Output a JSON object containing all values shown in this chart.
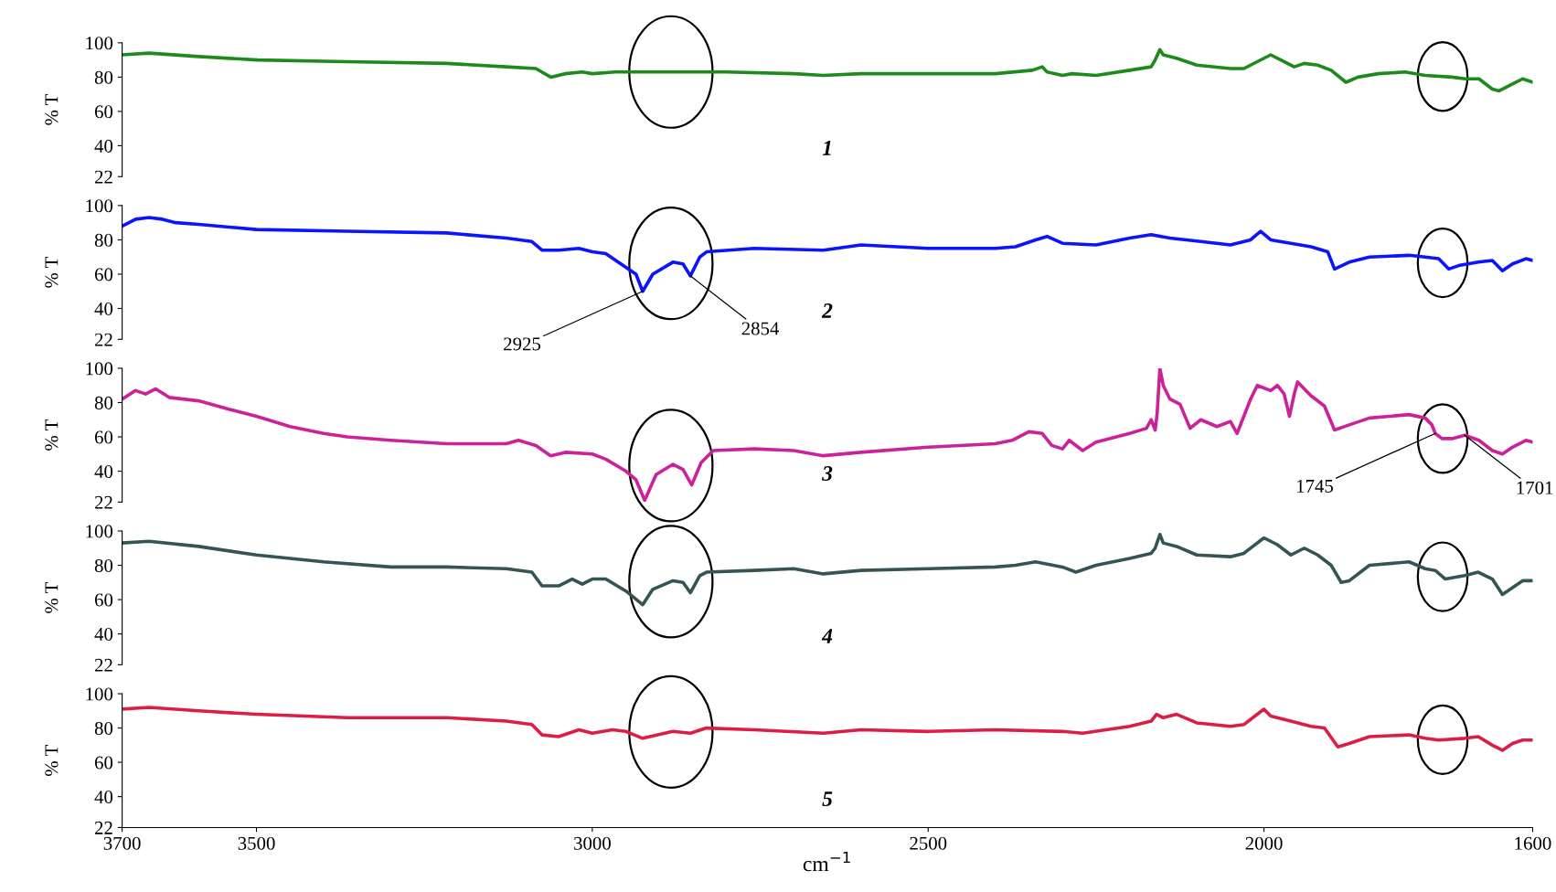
{
  "chart_data": [
    {
      "type": "line",
      "ylabel": "% T",
      "xlim": [
        3700,
        1600
      ],
      "ylim": [
        22,
        100
      ],
      "yticks": [
        22,
        40,
        60,
        80,
        100
      ],
      "tick_labels": "y",
      "annotations": [
        "1"
      ],
      "x": [
        3700,
        3660,
        3586,
        3498,
        3365,
        3217,
        3128,
        3084,
        3062,
        3040,
        3015,
        3000,
        2966,
        2900,
        2800,
        2700,
        2656,
        2600,
        2500,
        2400,
        2345,
        2330,
        2323,
        2300,
        2286,
        2250,
        2200,
        2168,
        2162,
        2155,
        2150,
        2130,
        2100,
        2050,
        2030,
        2020,
        2000,
        1990,
        1975,
        1955,
        1940,
        1920,
        1900,
        1878,
        1860,
        1830,
        1790,
        1760,
        1720,
        1700,
        1680,
        1660,
        1650,
        1630,
        1615,
        1600
      ],
      "series": [
        {
          "color": "#1e8a1e",
          "values": [
            93,
            94,
            92,
            90,
            89,
            88,
            86,
            85,
            80,
            82,
            83,
            82,
            83,
            83,
            83,
            82,
            81,
            82,
            82,
            82,
            84,
            86,
            83,
            81,
            82,
            81,
            84,
            86,
            90,
            96,
            93,
            91,
            87,
            85,
            85,
            87,
            91,
            93,
            90,
            86,
            88,
            87,
            84,
            77,
            80,
            82,
            83,
            81,
            80,
            79,
            79,
            73,
            72,
            76,
            79,
            77
          ]
        }
      ]
    },
    {
      "type": "line",
      "ylabel": "% T",
      "xlim": [
        3700,
        1600
      ],
      "ylim": [
        22,
        100
      ],
      "yticks": [
        22,
        40,
        60,
        80,
        100
      ],
      "tick_labels": "y",
      "annotations": [
        "2",
        {
          "text": "2925",
          "x": 2925,
          "y": 50
        },
        {
          "text": "2854",
          "x": 2854,
          "y": 59
        }
      ],
      "x": [
        3700,
        3680,
        3660,
        3640,
        3620,
        3586,
        3500,
        3365,
        3217,
        3128,
        3090,
        3075,
        3050,
        3020,
        3000,
        2980,
        2950,
        2935,
        2925,
        2910,
        2880,
        2865,
        2854,
        2840,
        2830,
        2759,
        2656,
        2600,
        2500,
        2400,
        2370,
        2340,
        2323,
        2300,
        2250,
        2200,
        2168,
        2140,
        2094,
        2050,
        2020,
        2005,
        1990,
        1960,
        1930,
        1905,
        1895,
        1873,
        1843,
        1784,
        1760,
        1740,
        1725,
        1710,
        1681,
        1660,
        1645,
        1630,
        1610,
        1600
      ],
      "series": [
        {
          "color": "#0a14ff",
          "values": [
            88,
            92,
            93,
            92,
            90,
            89,
            86,
            85,
            84,
            81,
            79,
            74,
            74,
            75,
            73,
            72,
            64,
            60,
            50,
            60,
            67,
            66,
            59,
            70,
            73,
            75,
            74,
            77,
            75,
            75,
            76,
            80,
            82,
            78,
            77,
            81,
            83,
            81,
            79,
            77,
            80,
            85,
            80,
            78,
            76,
            73,
            63,
            67,
            70,
            71,
            70,
            69,
            63,
            65,
            67,
            68,
            62,
            66,
            69,
            68
          ]
        }
      ]
    },
    {
      "type": "line",
      "ylabel": "% T",
      "xlim": [
        3700,
        1600
      ],
      "ylim": [
        22,
        100
      ],
      "yticks": [
        22,
        40,
        60,
        80,
        100
      ],
      "tick_labels": "y",
      "annotations": [
        "3",
        {
          "text": "1745",
          "x": 1745,
          "y": 62
        },
        {
          "text": "1701",
          "x": 1701,
          "y": 61
        }
      ],
      "x": [
        3700,
        3680,
        3665,
        3650,
        3630,
        3586,
        3540,
        3500,
        3450,
        3400,
        3365,
        3300,
        3217,
        3128,
        3110,
        3084,
        3062,
        3040,
        3000,
        2980,
        2950,
        2935,
        2922,
        2905,
        2880,
        2865,
        2852,
        2838,
        2820,
        2759,
        2700,
        2656,
        2600,
        2500,
        2400,
        2375,
        2350,
        2330,
        2316,
        2300,
        2290,
        2270,
        2250,
        2200,
        2175,
        2168,
        2162,
        2159,
        2155,
        2150,
        2140,
        2125,
        2110,
        2094,
        2070,
        2050,
        2040,
        2030,
        2020,
        2010,
        1990,
        1980,
        1970,
        1962,
        1955,
        1950,
        1930,
        1910,
        1895,
        1873,
        1843,
        1784,
        1760,
        1750,
        1745,
        1735,
        1720,
        1701,
        1680,
        1660,
        1645,
        1630,
        1610,
        1600
      ],
      "series": [
        {
          "color": "#cc2299",
          "values": [
            82,
            87,
            85,
            88,
            83,
            81,
            76,
            72,
            66,
            62,
            60,
            58,
            56,
            56,
            58,
            55,
            49,
            51,
            50,
            47,
            40,
            35,
            23,
            38,
            44,
            41,
            32,
            45,
            52,
            53,
            52,
            49,
            51,
            54,
            56,
            58,
            63,
            62,
            55,
            53,
            58,
            52,
            57,
            62,
            65,
            70,
            64,
            74,
            100,
            90,
            82,
            79,
            65,
            70,
            66,
            69,
            62,
            72,
            82,
            90,
            87,
            90,
            85,
            72,
            85,
            92,
            84,
            78,
            64,
            67,
            71,
            73,
            71,
            67,
            62,
            59,
            59,
            61,
            58,
            52,
            50,
            54,
            58,
            57
          ]
        }
      ]
    },
    {
      "type": "line",
      "ylabel": "% T",
      "xlim": [
        3700,
        1600
      ],
      "ylim": [
        22,
        100
      ],
      "yticks": [
        22,
        40,
        60,
        80,
        100
      ],
      "tick_labels": "y",
      "annotations": [
        "4"
      ],
      "x": [
        3700,
        3660,
        3586,
        3500,
        3400,
        3300,
        3217,
        3128,
        3090,
        3075,
        3050,
        3030,
        3015,
        3000,
        2980,
        2950,
        2925,
        2910,
        2880,
        2865,
        2854,
        2840,
        2830,
        2759,
        2700,
        2656,
        2600,
        2500,
        2400,
        2370,
        2340,
        2300,
        2280,
        2250,
        2200,
        2168,
        2162,
        2155,
        2150,
        2130,
        2100,
        2050,
        2030,
        2000,
        1980,
        1960,
        1940,
        1920,
        1900,
        1885,
        1873,
        1843,
        1784,
        1760,
        1745,
        1730,
        1701,
        1681,
        1660,
        1645,
        1630,
        1615,
        1600
      ],
      "series": [
        {
          "color": "#355555",
          "values": [
            93,
            94,
            91,
            86,
            82,
            79,
            79,
            78,
            76,
            68,
            68,
            72,
            69,
            72,
            72,
            65,
            57,
            66,
            71,
            70,
            64,
            74,
            76,
            77,
            78,
            75,
            77,
            78,
            79,
            80,
            82,
            79,
            76,
            80,
            84,
            87,
            90,
            98,
            93,
            91,
            86,
            85,
            87,
            96,
            92,
            86,
            90,
            86,
            80,
            70,
            71,
            80,
            82,
            78,
            77,
            72,
            74,
            76,
            72,
            63,
            67,
            71,
            71
          ]
        }
      ]
    },
    {
      "type": "line",
      "ylabel": "% T",
      "xlabel": "cm$^{−1}$",
      "xlim": [
        3700,
        1600
      ],
      "xticks": [
        3700,
        3500,
        3000,
        2500,
        2000,
        1600
      ],
      "ylim": [
        22,
        100
      ],
      "yticks": [
        22,
        40,
        60,
        80,
        100
      ],
      "annotations": [
        "5"
      ],
      "x": [
        3700,
        3660,
        3586,
        3500,
        3365,
        3217,
        3128,
        3090,
        3075,
        3050,
        3020,
        3000,
        2970,
        2950,
        2925,
        2880,
        2854,
        2830,
        2759,
        2656,
        2600,
        2500,
        2400,
        2300,
        2270,
        2200,
        2168,
        2160,
        2150,
        2130,
        2100,
        2050,
        2030,
        2010,
        2000,
        1990,
        1960,
        1930,
        1910,
        1890,
        1873,
        1843,
        1784,
        1760,
        1740,
        1701,
        1681,
        1660,
        1645,
        1630,
        1615,
        1600
      ],
      "series": [
        {
          "color": "#dc1e46",
          "values": [
            91,
            92,
            90,
            88,
            86,
            86,
            84,
            82,
            76,
            75,
            79,
            77,
            79,
            78,
            74,
            78,
            77,
            80,
            79,
            77,
            79,
            78,
            79,
            78,
            77,
            81,
            84,
            88,
            86,
            88,
            83,
            81,
            82,
            88,
            91,
            87,
            84,
            81,
            80,
            69,
            71,
            75,
            76,
            74,
            73,
            74,
            75,
            70,
            67,
            71,
            73,
            73
          ]
        }
      ]
    }
  ]
}
